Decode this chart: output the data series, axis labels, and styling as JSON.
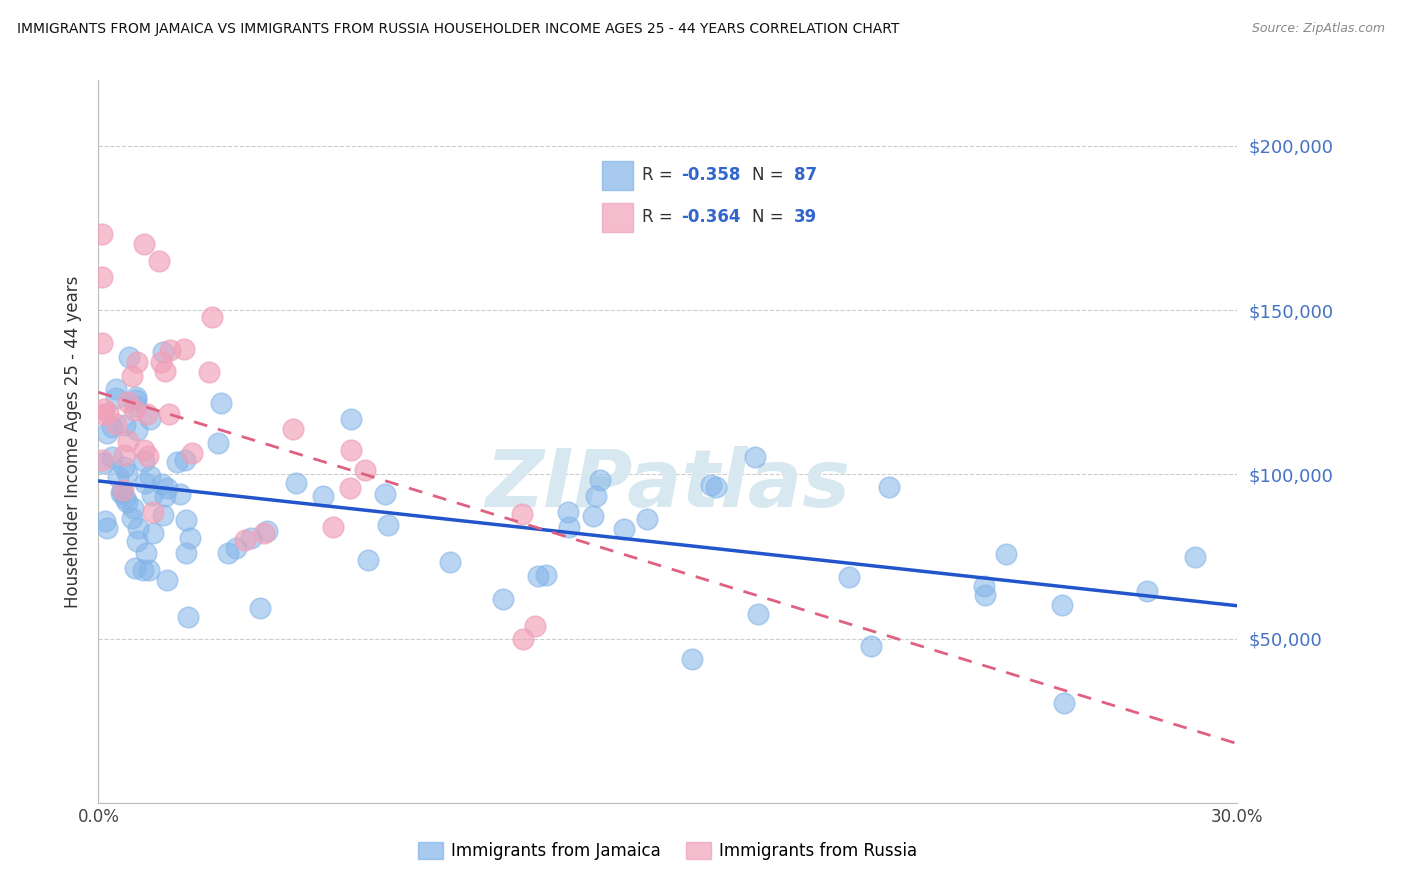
{
  "title": "IMMIGRANTS FROM JAMAICA VS IMMIGRANTS FROM RUSSIA HOUSEHOLDER INCOME AGES 25 - 44 YEARS CORRELATION CHART",
  "source": "Source: ZipAtlas.com",
  "ylabel": "Householder Income Ages 25 - 44 years",
  "xlim": [
    0.0,
    0.3
  ],
  "ylim": [
    0,
    220000
  ],
  "yticks": [
    0,
    50000,
    100000,
    150000,
    200000
  ],
  "ytick_labels": [
    "",
    "$50,000",
    "$100,000",
    "$150,000",
    "$200,000"
  ],
  "xticks": [
    0.0,
    0.05,
    0.1,
    0.15,
    0.2,
    0.25,
    0.3
  ],
  "xtick_labels": [
    "0.0%",
    "",
    "",
    "",
    "",
    "",
    "30.0%"
  ],
  "jamaica_color": "#82B4E8",
  "russia_color": "#F0A0B8",
  "jamaica_line_color": "#2255CC",
  "russia_line_color": "#E06080",
  "r_jamaica": -0.358,
  "n_jamaica": 87,
  "r_russia": -0.364,
  "n_russia": 39,
  "jam_line_x0": 0.0,
  "jam_line_y0": 98000,
  "jam_line_x1": 0.3,
  "jam_line_y1": 60000,
  "rus_line_x0": 0.0,
  "rus_line_y0": 125000,
  "rus_line_x1": 0.3,
  "rus_line_y1": 18000,
  "watermark": "ZIPatlas",
  "watermark_color": "#d8e8f0",
  "legend_title_jam": "R = -0.358   N = 87",
  "legend_title_rus": "R = -0.364   N = 39"
}
